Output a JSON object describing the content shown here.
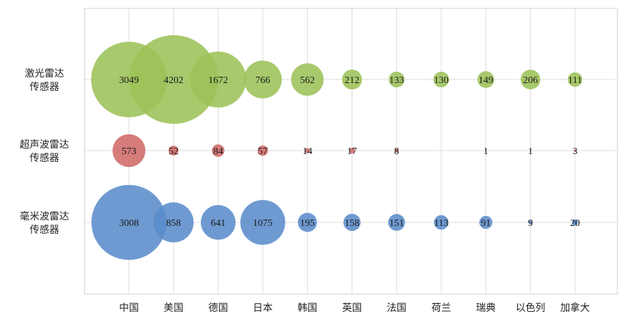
{
  "chart_data": {
    "type": "bubble",
    "categories": [
      "中国",
      "美国",
      "德国",
      "日本",
      "韩国",
      "英国",
      "法国",
      "荷兰",
      "瑞典",
      "以色列",
      "加拿大"
    ],
    "series": [
      {
        "name": "激光雷达传感器",
        "label_lines": [
          "激光雷达",
          "传感器"
        ],
        "color": "#9cc158",
        "values": [
          3049,
          4202,
          1672,
          766,
          562,
          212,
          133,
          130,
          149,
          206,
          111
        ]
      },
      {
        "name": "超声波雷达传感器",
        "label_lines": [
          "超声波雷达",
          "传感器"
        ],
        "color": "#d06a68",
        "values": [
          573,
          52,
          84,
          57,
          14,
          17,
          8,
          null,
          1,
          1,
          3
        ]
      },
      {
        "name": "毫米波雷达传感器",
        "label_lines": [
          "毫米波雷达",
          "传感器"
        ],
        "color": "#5b8ccb",
        "values": [
          3008,
          858,
          641,
          1075,
          195,
          158,
          151,
          113,
          91,
          9,
          20
        ]
      }
    ],
    "grid": true,
    "legend": "none"
  }
}
